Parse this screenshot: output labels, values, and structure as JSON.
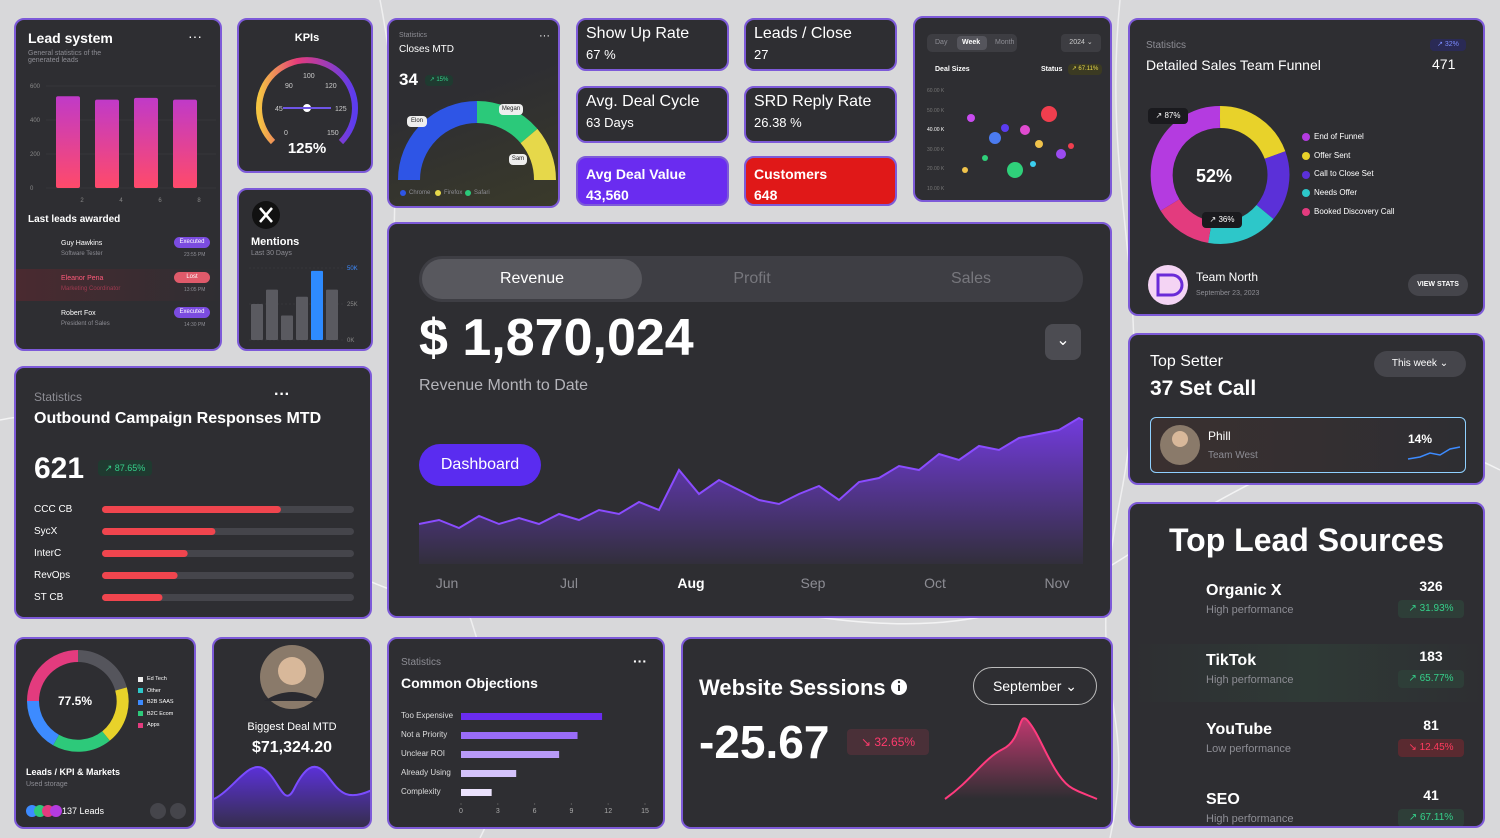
{
  "lead_system": {
    "title": "Lead system",
    "subtitle": "General statistics of the generated leads",
    "chart": {
      "type": "bar",
      "categories": [
        "2",
        "4",
        "6",
        "8"
      ],
      "values": [
        540,
        520,
        530,
        520
      ],
      "ylim": [
        0,
        600
      ],
      "yticks": [
        0,
        200,
        400,
        600
      ]
    },
    "section": "Last leads awarded",
    "people": [
      {
        "name": "Guy Hawkins",
        "role": "Software Tester",
        "status": "Executed",
        "time": "23:55 PM"
      },
      {
        "name": "Eleanor Pena",
        "role": "Marketing Coordinator",
        "status": "Lost",
        "time": "13:05 PM"
      },
      {
        "name": "Robert Fox",
        "role": "President of Sales",
        "status": "Executed",
        "time": "14:30 PM"
      }
    ]
  },
  "kpis": {
    "title": "KPIs",
    "gauge_labels": [
      "0",
      "45",
      "90",
      "100",
      "120",
      "125",
      "150"
    ],
    "value": "125%"
  },
  "mentions": {
    "title": "Mentions",
    "subtitle": "Last 30 Days",
    "chart": {
      "type": "bar",
      "values": [
        25000,
        35000,
        17000,
        30000,
        48000,
        35000
      ],
      "ylim": [
        0,
        50000
      ],
      "yticks": [
        {
          "value": 0,
          "label": "0K"
        },
        {
          "value": 25000,
          "label": "25K"
        },
        {
          "value": 50000,
          "label": "50K"
        }
      ]
    }
  },
  "closes": {
    "label": "Statistics",
    "title": "Closes MTD",
    "value": "34",
    "badge": "↗ 15%",
    "gauge_labels": [
      "Elon",
      "Megan",
      "Sam"
    ],
    "legend": [
      "Chrome",
      "Firefox",
      "Safari"
    ]
  },
  "stat_cards": [
    {
      "title": "Show Up Rate",
      "value": "67 %"
    },
    {
      "title": "Leads / Close",
      "value": "27"
    },
    {
      "title": "Avg. Deal Cycle",
      "value": "63 Days"
    },
    {
      "title": "SRD Reply Rate",
      "value": "26.38 %"
    },
    {
      "title": "Avg Deal Value",
      "value": "43,560"
    },
    {
      "title": "Customers",
      "value": "648"
    }
  ],
  "deal_sizes": {
    "tabs": [
      "Day",
      "Week",
      "Month"
    ],
    "year": "2024",
    "label": "Deal Sizes",
    "status": "Status",
    "badge": "↗ 67.11%",
    "yticks": [
      "60.00 K",
      "50.00 K",
      "40.00 K",
      "30.00 K",
      "20.00 K",
      "10.00 K",
      "00.00 K"
    ]
  },
  "funnel": {
    "label": "Statistics",
    "badge": "↗ 32%",
    "title": "Detailed Sales Team Funnel",
    "value": "471",
    "center": "52%",
    "callouts": [
      "↗ 87%",
      "↗ 36%"
    ],
    "legend": [
      "End of Funnel",
      "Offer Sent",
      "Call to Close Set",
      "Needs Offer",
      "Booked Discovery Call"
    ],
    "team": "Team North",
    "date": "September 23, 2023",
    "button": "VIEW STATS"
  },
  "revenue": {
    "tabs": [
      "Revenue",
      "Profit",
      "Sales"
    ],
    "value": "$ 1,870,024",
    "label": "Revenue Month to Date",
    "button": "Dashboard",
    "months": [
      "Jun",
      "Jul",
      "Aug",
      "Sep",
      "Oct",
      "Nov"
    ]
  },
  "top_setter": {
    "title": "Top Setter",
    "value": "37 Set Call",
    "period": "This week",
    "name": "Phill",
    "team": "Team West",
    "share": "14%"
  },
  "outbound": {
    "label": "Statistics",
    "title": "Outbound Campaign Responses MTD",
    "value": "621",
    "badge": "↗ 87.65%",
    "chart": {
      "type": "bar",
      "categories": [
        "CCC CB",
        "SycX",
        "InterC",
        "RevOps",
        "ST CB"
      ],
      "values": [
        71,
        45,
        34,
        30,
        24
      ],
      "xlim": [
        0,
        100
      ]
    }
  },
  "lead_sources": {
    "title": "Top Lead Sources",
    "items": [
      {
        "name": "Organic X",
        "note": "High performance",
        "value": "326",
        "change": "↗ 31.93%"
      },
      {
        "name": "TikTok",
        "note": "High performance",
        "value": "183",
        "change": "↗ 65.77%"
      },
      {
        "name": "YouTube",
        "note": "Low performance",
        "value": "81",
        "change": "↘ 12.45%"
      },
      {
        "name": "SEO",
        "note": "High performance",
        "value": "41",
        "change": "↗ 67.11%"
      }
    ]
  },
  "markets": {
    "center": "77.5%",
    "legend": [
      "Ed Tech",
      "Other",
      "B2B SAAS",
      "B2C Ecom",
      "Apps"
    ],
    "title": "Leads / KPI & Markets",
    "subtitle": "Used storage",
    "leads": "137 Leads"
  },
  "biggest_deal": {
    "title": "Biggest Deal MTD",
    "value": "$71,324.20"
  },
  "objections": {
    "label": "Statistics",
    "title": "Common Objections",
    "chart": {
      "type": "bar",
      "categories": [
        "Too Expensive",
        "Not a Priority",
        "Unclear ROI",
        "Already Using",
        "Complexity"
      ],
      "values": [
        11.5,
        9.5,
        8,
        4.5,
        2.5
      ],
      "xlim": [
        0,
        15
      ],
      "xticks": [
        0,
        3,
        6,
        9,
        12,
        15
      ]
    }
  },
  "sessions": {
    "title": "Website Sessions",
    "period": "September",
    "value": "-25.67",
    "badge": "↘ 32.65%"
  }
}
